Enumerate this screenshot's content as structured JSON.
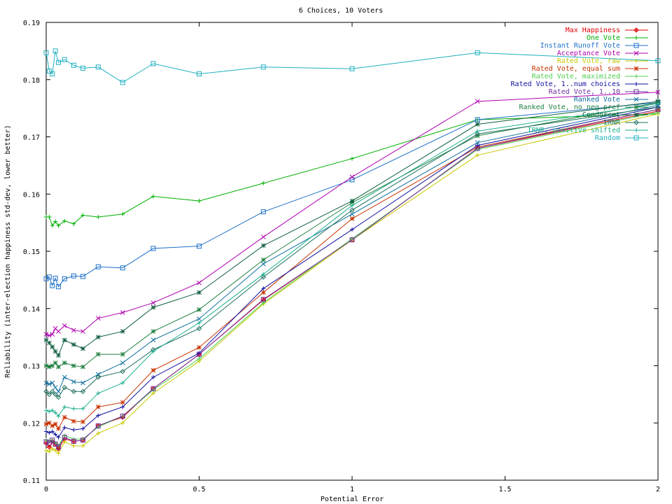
{
  "chart_data": {
    "type": "line",
    "title": "6 Choices, 10 Voters",
    "xlabel": "Potential Error",
    "ylabel": "Reliability (inter-election happiness std-dev, lower better)",
    "xlim": [
      0,
      2
    ],
    "ylim": [
      0.11,
      0.19
    ],
    "xticks": [
      "0",
      "0.5",
      "1",
      "1.5",
      "2"
    ],
    "xtick_values": [
      0,
      0.5,
      1,
      1.5,
      2
    ],
    "yticks": [
      "0.11",
      "0.12",
      "0.13",
      "0.14",
      "0.15",
      "0.16",
      "0.17",
      "0.18",
      "0.19"
    ],
    "ytick_values": [
      0.11,
      0.12,
      0.13,
      0.14,
      0.15,
      0.16,
      0.17,
      0.18,
      0.19
    ],
    "legend_position": "top-right",
    "x": [
      0,
      0.01,
      0.02,
      0.03,
      0.04,
      0.06,
      0.09,
      0.12,
      0.17,
      0.25,
      0.35,
      0.5,
      0.71,
      1.0,
      1.41,
      2.0
    ],
    "series": [
      {
        "name": "Max Happiness",
        "color": "#e00000",
        "marker": "plus-diamond",
        "values": [
          0.1165,
          0.1158,
          0.1168,
          0.1163,
          0.1155,
          0.1172,
          0.1168,
          0.117,
          0.1195,
          0.121,
          0.126,
          0.132,
          0.1415,
          0.152,
          0.168,
          0.1745
        ]
      },
      {
        "name": "One Vote",
        "color": "#00b000",
        "marker": "plus",
        "values": [
          0.156,
          0.156,
          0.1545,
          0.1552,
          0.1545,
          0.1553,
          0.1548,
          0.1563,
          0.156,
          0.1565,
          0.1596,
          0.1588,
          0.1619,
          0.1662,
          0.173,
          0.174
        ]
      },
      {
        "name": "Instant Runoff Vote",
        "color": "#1e70c8",
        "marker": "square",
        "values": [
          0.1452,
          0.1455,
          0.144,
          0.1453,
          0.1438,
          0.1452,
          0.1457,
          0.1456,
          0.1473,
          0.1471,
          0.1505,
          0.1509,
          0.1569,
          0.1625,
          0.173,
          0.176
        ]
      },
      {
        "name": "Acceptance Vote",
        "color": "#b000b0",
        "marker": "x",
        "values": [
          0.1355,
          0.1353,
          0.1355,
          0.1365,
          0.136,
          0.137,
          0.1362,
          0.136,
          0.1383,
          0.1393,
          0.141,
          0.1445,
          0.1525,
          0.163,
          0.1762,
          0.1778
        ]
      },
      {
        "name": "Rated Vote, raw",
        "color": "#c8c800",
        "marker": "plus",
        "values": [
          0.1152,
          0.115,
          0.1155,
          0.1152,
          0.1147,
          0.1167,
          0.116,
          0.116,
          0.1182,
          0.12,
          0.1252,
          0.1308,
          0.1408,
          0.152,
          0.1668,
          0.174
        ]
      },
      {
        "name": "Rated Vote, equal sum",
        "color": "#c83200",
        "marker": "asterisk",
        "values": [
          0.1198,
          0.12,
          0.1195,
          0.1198,
          0.119,
          0.121,
          0.1203,
          0.1202,
          0.1228,
          0.1236,
          0.1292,
          0.1332,
          0.1428,
          0.1557,
          0.1682,
          0.1748
        ]
      },
      {
        "name": "Rated Vote, maximized",
        "color": "#50d050",
        "marker": "plus",
        "values": [
          0.117,
          0.1168,
          0.117,
          0.1165,
          0.116,
          0.1178,
          0.1172,
          0.1172,
          0.1193,
          0.1212,
          0.1258,
          0.1312,
          0.141,
          0.1522,
          0.1678,
          0.1743
        ]
      },
      {
        "name": "Rated Vote, 1..num choices",
        "color": "#1010a0",
        "marker": "plus",
        "values": [
          0.1185,
          0.1183,
          0.1185,
          0.118,
          0.1175,
          0.1192,
          0.1188,
          0.119,
          0.1213,
          0.1228,
          0.128,
          0.1322,
          0.1435,
          0.1538,
          0.1685,
          0.1752
        ]
      },
      {
        "name": "Rated Vote, 1..10",
        "color": "#7030a0",
        "marker": "square",
        "values": [
          0.1167,
          0.1165,
          0.117,
          0.1163,
          0.1158,
          0.1175,
          0.1168,
          0.117,
          0.1195,
          0.1212,
          0.126,
          0.132,
          0.1416,
          0.152,
          0.168,
          0.1748
        ]
      },
      {
        "name": "Ranked Vote",
        "color": "#1070a0",
        "marker": "x",
        "values": [
          0.127,
          0.1268,
          0.127,
          0.1262,
          0.1255,
          0.128,
          0.1272,
          0.127,
          0.1285,
          0.1305,
          0.1345,
          0.1382,
          0.1478,
          0.1565,
          0.169,
          0.1755
        ]
      },
      {
        "name": "Ranked Vote, no neg pref",
        "color": "#208040",
        "marker": "asterisk",
        "values": [
          0.13,
          0.1298,
          0.13,
          0.1305,
          0.1298,
          0.1305,
          0.13,
          0.1298,
          0.132,
          0.132,
          0.136,
          0.1398,
          0.1485,
          0.1585,
          0.1702,
          0.176
        ]
      },
      {
        "name": "Condorcet",
        "color": "#106040",
        "marker": "asterisk",
        "values": [
          0.1345,
          0.134,
          0.1333,
          0.1325,
          0.1318,
          0.1345,
          0.1337,
          0.133,
          0.135,
          0.136,
          0.1402,
          0.1428,
          0.151,
          0.1588,
          0.1722,
          0.1762
        ]
      },
      {
        "name": "IRNR",
        "color": "#207060",
        "marker": "diamond",
        "values": [
          0.1255,
          0.125,
          0.1255,
          0.125,
          0.1245,
          0.1262,
          0.1255,
          0.1255,
          0.128,
          0.129,
          0.1328,
          0.1365,
          0.1455,
          0.1572,
          0.1705,
          0.1752
        ]
      },
      {
        "name": "IRNR, positive shifted",
        "color": "#20b090",
        "marker": "plus",
        "values": [
          0.1222,
          0.122,
          0.1222,
          0.1218,
          0.1212,
          0.1228,
          0.1225,
          0.1225,
          0.1252,
          0.127,
          0.1325,
          0.1375,
          0.146,
          0.158,
          0.171,
          0.1758
        ]
      },
      {
        "name": "Random",
        "color": "#20b0c0",
        "marker": "square",
        "values": [
          0.1847,
          0.1815,
          0.181,
          0.185,
          0.183,
          0.1835,
          0.1825,
          0.182,
          0.1822,
          0.1795,
          0.1828,
          0.181,
          0.1822,
          0.1819,
          0.1847,
          0.1833
        ]
      }
    ]
  }
}
